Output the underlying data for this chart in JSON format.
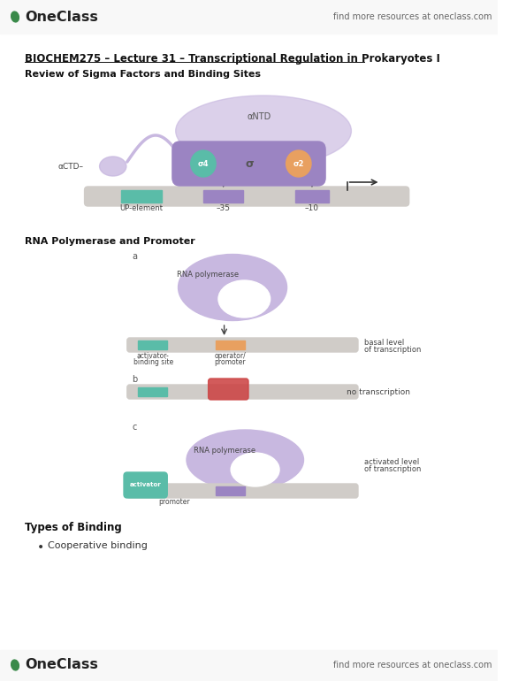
{
  "bg_color": "#ffffff",
  "title_text": "BIOCHEM275 – Lecture 31 – Transcriptional Regulation in Prokaryotes I",
  "section1": "Review of Sigma Factors and Binding Sites",
  "section2": "RNA Polymerase and Promoter",
  "section3": "Types of Binding",
  "bullet1": "Cooperative binding",
  "purple_light": "#c8b8e0",
  "purple_med": "#9b84c2",
  "orange_color": "#e8a060",
  "teal_color": "#5abca8",
  "red_color": "#cc4444",
  "dna_color": "#d0ccc8",
  "text_dark": "#111111",
  "text_med": "#444444",
  "header_bg": "#f8f8f8",
  "green_logo": "#3a8a4a"
}
